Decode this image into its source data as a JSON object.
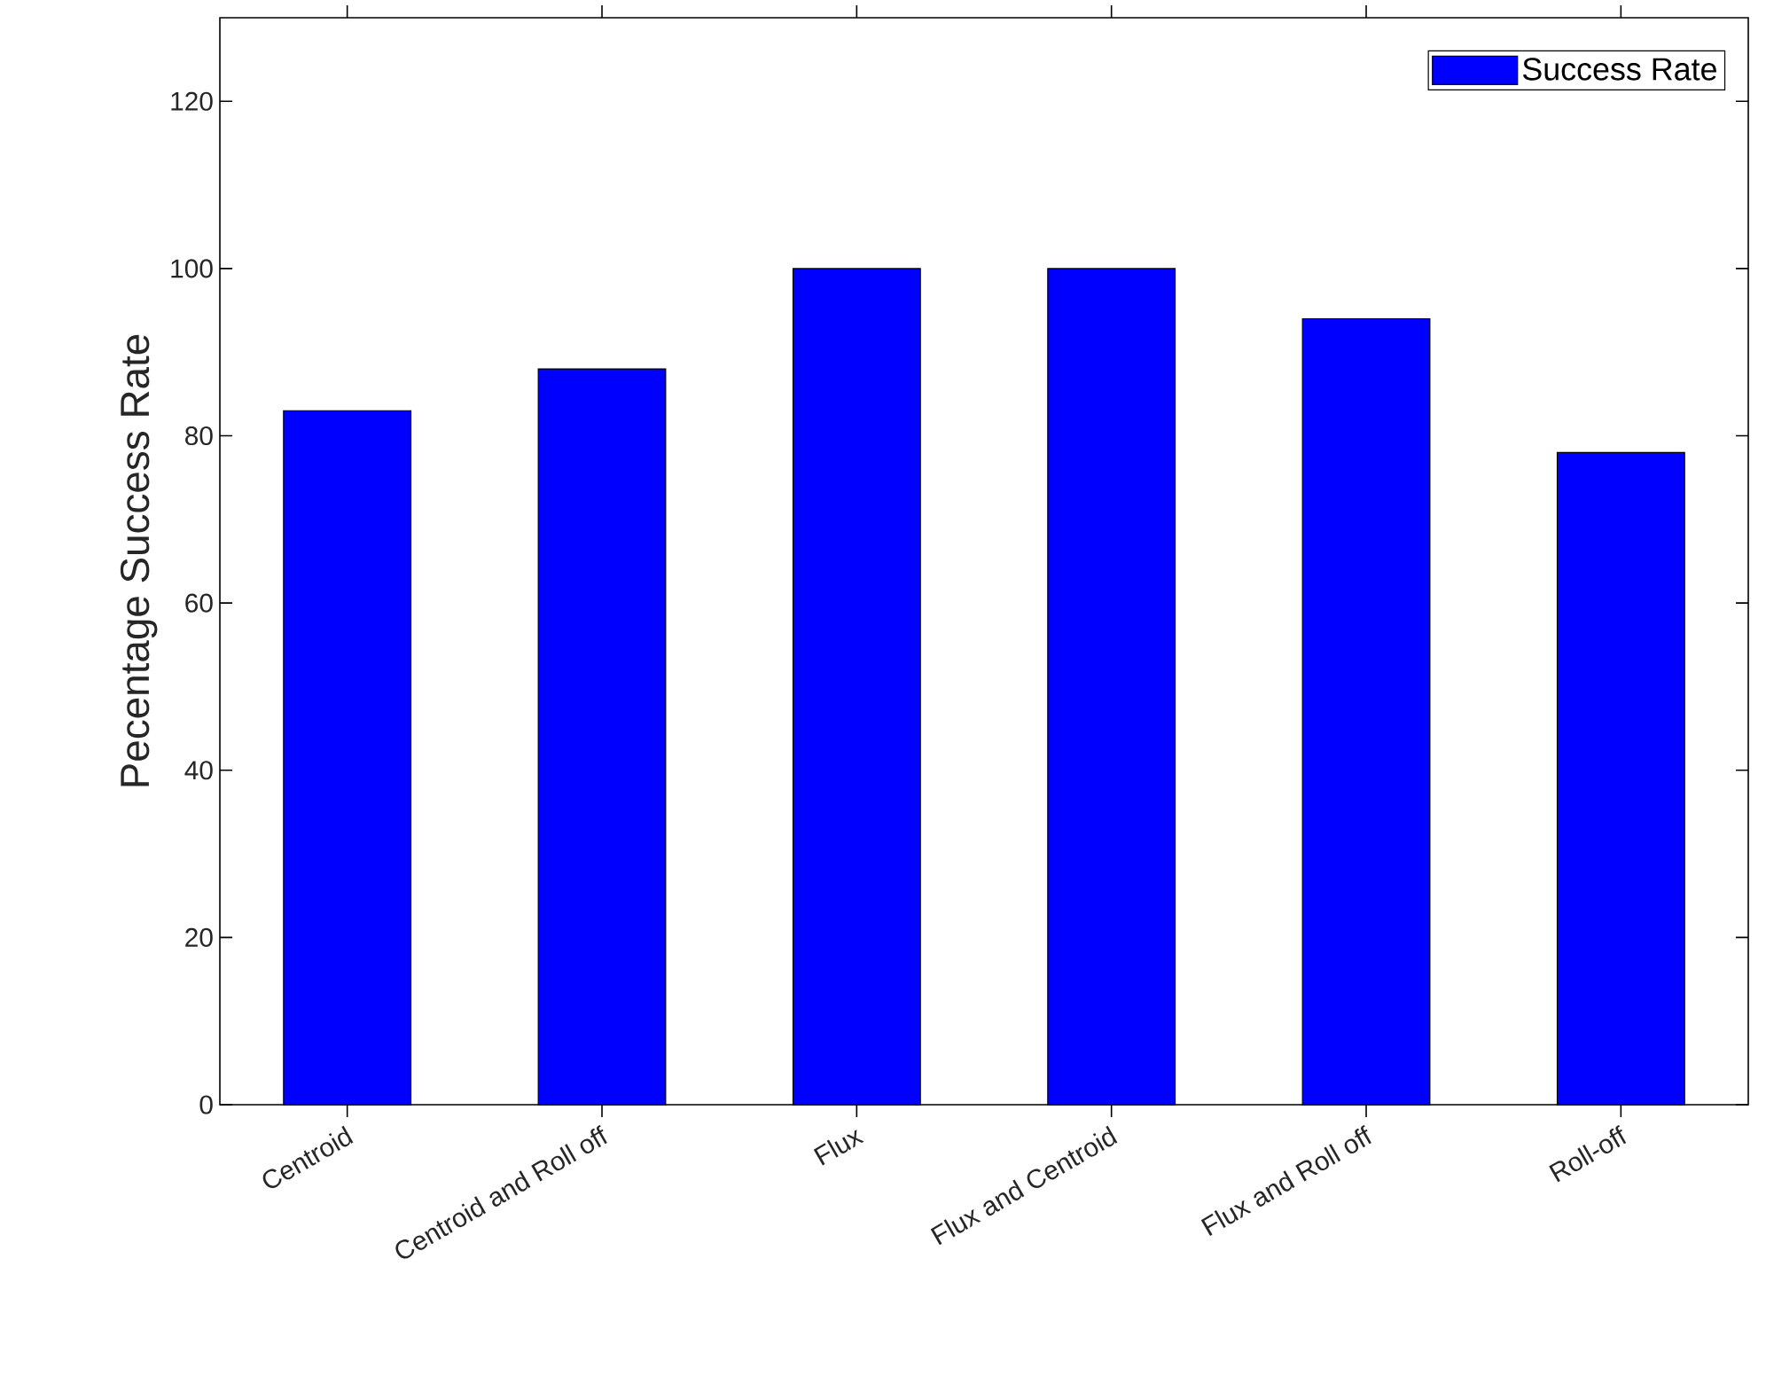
{
  "chart_data": {
    "type": "bar",
    "categories": [
      "Centroid",
      "Centroid and Roll off",
      "Flux",
      "Flux and Centroid",
      "Flux and Roll off",
      "Roll-off"
    ],
    "ylabel": "Pecentage Success Rate",
    "series": [
      {
        "name": "Success Rate",
        "color": "#0000ff",
        "values": [
          83,
          88,
          100,
          100,
          94,
          78
        ]
      }
    ],
    "ylim": [
      0,
      130
    ],
    "yticks": [
      0,
      20,
      40,
      60,
      80,
      100,
      120
    ],
    "legend": "top right",
    "grid": false
  }
}
